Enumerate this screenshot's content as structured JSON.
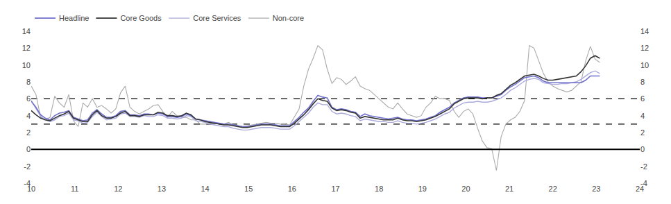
{
  "chart_data": {
    "type": "line",
    "x": [
      10,
      10.1081,
      10.2162,
      10.3243,
      10.4324,
      10.5405,
      10.6486,
      10.7567,
      10.8648,
      10.9729,
      11.081,
      11.1891,
      11.2972,
      11.4053,
      11.5134,
      11.6215,
      11.7296,
      11.8377,
      11.9458,
      12.0539,
      12.162,
      12.2701,
      12.3782,
      12.4863,
      12.5944,
      12.7025,
      12.8106,
      12.9187,
      13.0268,
      13.1349,
      13.243,
      13.3511,
      13.4592,
      13.5673,
      13.6754,
      13.7835,
      13.8916,
      13.9997,
      14.1078,
      14.2159,
      14.324,
      14.4321,
      14.5402,
      14.6483,
      14.7564,
      14.8645,
      14.9726,
      15.0807,
      15.1888,
      15.2969,
      15.405,
      15.5131,
      15.6212,
      15.7293,
      15.8374,
      15.9455,
      16.0536,
      16.1617,
      16.2698,
      16.3779,
      16.486,
      16.5941,
      16.7022,
      16.8102,
      16.9183,
      17.0264,
      17.1345,
      17.2426,
      17.3507,
      17.4588,
      17.5669,
      17.675,
      17.7831,
      17.8912,
      17.9993,
      18.1074,
      18.2155,
      18.3236,
      18.4317,
      18.5398,
      18.6479,
      18.756,
      18.8641,
      18.9722,
      19.0803,
      19.1884,
      19.2965,
      19.4046,
      19.5127,
      19.6208,
      19.7289,
      19.837,
      19.9451,
      20.0532,
      20.1613,
      20.2694,
      20.3775,
      20.4856,
      20.5937,
      20.7018,
      20.8099,
      20.918,
      21.0261,
      21.1342,
      21.2423,
      21.3504,
      21.4585,
      21.5666,
      21.6747,
      21.7828,
      21.8909,
      21.999,
      22.1071,
      22.2152,
      22.3233,
      22.4314,
      22.5395,
      22.6476,
      22.7557,
      22.8638,
      22.9719,
      23.08
    ],
    "series": [
      {
        "name": "Headline",
        "color": "#7070CC",
        "values": [
          5.7,
          5.0,
          4.1,
          3.7,
          3.5,
          4.0,
          4.3,
          4.4,
          4.6,
          3.8,
          3.6,
          3.4,
          3.5,
          4.3,
          4.7,
          4.2,
          3.8,
          3.8,
          4.0,
          4.5,
          4.6,
          4.1,
          4.1,
          4.0,
          4.2,
          4.2,
          4.1,
          4.3,
          4.2,
          3.9,
          3.9,
          3.8,
          3.9,
          4.2,
          4.0,
          3.6,
          3.5,
          3.4,
          3.3,
          3.2,
          3.1,
          3.0,
          3.0,
          2.9,
          2.8,
          2.7,
          2.7,
          2.8,
          2.9,
          3.0,
          3.0,
          3.0,
          2.9,
          2.8,
          2.8,
          2.8,
          3.3,
          3.8,
          4.4,
          4.9,
          5.7,
          6.4,
          6.2,
          6.1,
          5.0,
          4.7,
          4.8,
          4.7,
          4.5,
          4.4,
          3.9,
          4.2,
          4.0,
          3.9,
          3.8,
          3.7,
          3.6,
          3.7,
          3.8,
          3.6,
          3.5,
          3.5,
          3.4,
          3.5,
          3.6,
          3.8,
          4.0,
          4.4,
          4.7,
          5.0,
          5.5,
          5.8,
          6.1,
          6.2,
          6.2,
          6.2,
          6.1,
          6.1,
          6.1,
          6.3,
          6.5,
          7.0,
          7.4,
          7.7,
          8.1,
          8.5,
          8.6,
          8.7,
          8.5,
          8.1,
          7.9,
          7.9,
          7.9,
          7.9,
          7.9,
          7.9,
          7.9,
          7.9,
          8.2,
          8.7,
          8.7,
          8.7
        ]
      },
      {
        "name": "Core Goods",
        "color": "#333333",
        "values": [
          4.6,
          4.1,
          3.7,
          3.5,
          3.4,
          3.7,
          4.0,
          4.2,
          4.5,
          3.7,
          3.5,
          3.3,
          3.3,
          4.1,
          4.6,
          4.0,
          3.7,
          3.7,
          3.9,
          4.3,
          4.5,
          4.0,
          4.0,
          3.9,
          4.1,
          4.1,
          4.1,
          4.4,
          4.3,
          4.0,
          4.0,
          3.9,
          4.0,
          4.3,
          4.1,
          3.6,
          3.5,
          3.3,
          3.2,
          3.1,
          3.0,
          2.9,
          2.9,
          2.8,
          2.7,
          2.6,
          2.6,
          2.7,
          2.8,
          2.9,
          2.9,
          2.9,
          2.8,
          2.7,
          2.7,
          2.7,
          3.1,
          3.6,
          4.1,
          4.7,
          5.4,
          6.0,
          5.8,
          5.7,
          4.9,
          4.6,
          4.7,
          4.6,
          4.4,
          4.3,
          3.7,
          3.9,
          3.8,
          3.7,
          3.6,
          3.5,
          3.5,
          3.5,
          3.7,
          3.5,
          3.4,
          3.4,
          3.3,
          3.4,
          3.5,
          3.7,
          3.9,
          4.2,
          4.5,
          4.8,
          5.4,
          5.7,
          6.0,
          6.1,
          6.1,
          6.1,
          6.0,
          6.1,
          6.1,
          6.4,
          6.6,
          7.1,
          7.6,
          7.9,
          8.3,
          8.7,
          8.8,
          8.9,
          8.7,
          8.4,
          8.2,
          8.2,
          8.3,
          8.4,
          8.5,
          8.6,
          8.7,
          9.2,
          9.9,
          10.8,
          11.1,
          10.8
        ]
      },
      {
        "name": "Core Services",
        "color": "#AAAADD",
        "values": [
          5.8,
          4.8,
          3.9,
          3.5,
          3.3,
          3.5,
          3.9,
          4.0,
          4.3,
          3.5,
          3.4,
          3.1,
          3.2,
          3.9,
          4.4,
          3.9,
          3.5,
          3.6,
          3.7,
          4.2,
          4.3,
          3.9,
          3.9,
          3.8,
          4.0,
          3.9,
          3.9,
          4.1,
          4.0,
          3.7,
          3.7,
          3.6,
          3.7,
          4.0,
          3.9,
          3.4,
          3.3,
          3.2,
          3.0,
          2.9,
          2.8,
          2.7,
          2.7,
          2.5,
          2.4,
          2.3,
          2.3,
          2.4,
          2.5,
          2.6,
          2.6,
          2.6,
          2.5,
          2.4,
          2.4,
          2.4,
          2.8,
          3.3,
          3.8,
          4.3,
          5.0,
          5.5,
          5.3,
          5.3,
          4.5,
          4.2,
          4.3,
          4.2,
          4.0,
          3.9,
          3.4,
          3.6,
          3.5,
          3.4,
          3.3,
          3.3,
          3.2,
          3.2,
          3.4,
          3.2,
          3.1,
          3.1,
          3.0,
          3.1,
          3.2,
          3.4,
          3.6,
          3.9,
          4.2,
          4.4,
          4.9,
          5.2,
          5.5,
          5.6,
          5.6,
          5.7,
          5.6,
          5.6,
          5.7,
          5.9,
          6.1,
          6.5,
          7.0,
          7.3,
          7.7,
          8.1,
          8.3,
          8.4,
          8.3,
          7.9,
          7.8,
          7.7,
          7.7,
          7.8,
          7.8,
          7.9,
          8.0,
          8.3,
          8.7,
          9.1,
          9.3,
          9.0
        ]
      },
      {
        "name": "Non-core",
        "color": "#AAAAAA",
        "values": [
          7.5,
          6.5,
          3.8,
          3.5,
          3.8,
          6.3,
          5.5,
          5.0,
          6.5,
          3.4,
          2.7,
          5.5,
          5.0,
          6.0,
          5.0,
          5.2,
          4.8,
          4.3,
          4.8,
          6.7,
          7.5,
          5.0,
          4.5,
          4.2,
          4.5,
          4.8,
          5.2,
          5.3,
          4.5,
          3.8,
          4.5,
          4.0,
          3.8,
          3.8,
          3.5,
          3.5,
          3.0,
          3.0,
          3.1,
          3.0,
          3.1,
          3.0,
          3.2,
          2.9,
          2.8,
          2.7,
          2.8,
          2.9,
          3.0,
          3.1,
          3.2,
          3.1,
          3.1,
          3.0,
          3.0,
          2.9,
          3.8,
          4.8,
          7.5,
          9.5,
          10.8,
          12.3,
          11.8,
          9.5,
          7.8,
          8.5,
          8.3,
          7.7,
          8.1,
          8.6,
          7.5,
          7.2,
          7.0,
          6.5,
          6.0,
          5.5,
          5.0,
          4.8,
          5.5,
          4.8,
          4.2,
          4.0,
          3.8,
          4.0,
          5.0,
          5.5,
          6.3,
          6.0,
          6.0,
          5.8,
          4.5,
          3.8,
          4.5,
          4.8,
          4.2,
          2.5,
          1.0,
          0.2,
          0.1,
          -2.5,
          1.5,
          3.0,
          3.5,
          3.8,
          4.5,
          5.8,
          12.3,
          12.0,
          10.5,
          9.0,
          8.0,
          7.5,
          7.2,
          7.0,
          6.8,
          7.0,
          7.5,
          8.0,
          10.5,
          12.2,
          10.7,
          10.3
        ]
      }
    ],
    "reference_lines": [
      {
        "value": 0,
        "color": "#000000",
        "line_style": "solid"
      },
      {
        "value": 3,
        "color": "#000000",
        "line_style": "dashed"
      },
      {
        "value": 6,
        "color": "#000000",
        "line_style": "dashed"
      }
    ],
    "xlim": [
      10,
      24
    ],
    "xticks": [
      10,
      11,
      12,
      13,
      14,
      15,
      16,
      17,
      18,
      19,
      20,
      21,
      22,
      23,
      24
    ],
    "ylim": [
      -4,
      14
    ],
    "yticks": [
      -4,
      -2,
      0,
      2,
      4,
      6,
      8,
      10,
      12,
      14
    ],
    "y2lim": [
      -4,
      14
    ],
    "y2ticks": [
      -4,
      -2,
      0,
      2,
      4,
      6,
      8,
      10,
      12,
      14
    ],
    "grid": false,
    "legend": "top left"
  }
}
